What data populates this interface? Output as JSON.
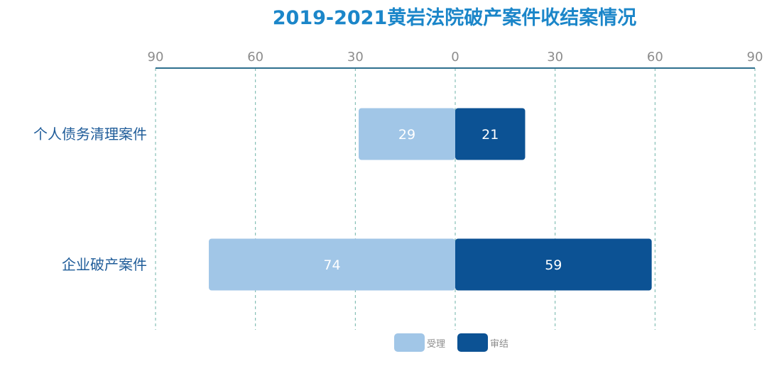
{
  "chart_data": {
    "type": "bar",
    "orientation": "horizontal",
    "layout": "diverging",
    "title": "2019-2021黄岩法院破产案件收结案情况",
    "categories": [
      "个人债务清理案件",
      "企业破产案件"
    ],
    "series": [
      {
        "name": "受理",
        "values": [
          29,
          74
        ],
        "color": "#a1c6e7",
        "side": "left"
      },
      {
        "name": "审结",
        "values": [
          21,
          59
        ],
        "color": "#0c5294",
        "side": "right"
      }
    ],
    "xlim": [
      -90,
      90
    ],
    "ticks": [
      -90,
      -60,
      -30,
      0,
      30,
      60,
      90
    ],
    "tick_labels": [
      "90",
      "60",
      "30",
      "0",
      "30",
      "60",
      "90"
    ],
    "grid": true,
    "legend": "bottom-center",
    "colors": {
      "title": "#1b86c9",
      "category_label": "#1f5c99",
      "tick_label": "#8c8c8c",
      "axis_line": "#2e6f8e",
      "grid": "#6fb3a9",
      "value_label": "#ffffff",
      "legend_text": "#8c8c8c"
    }
  }
}
